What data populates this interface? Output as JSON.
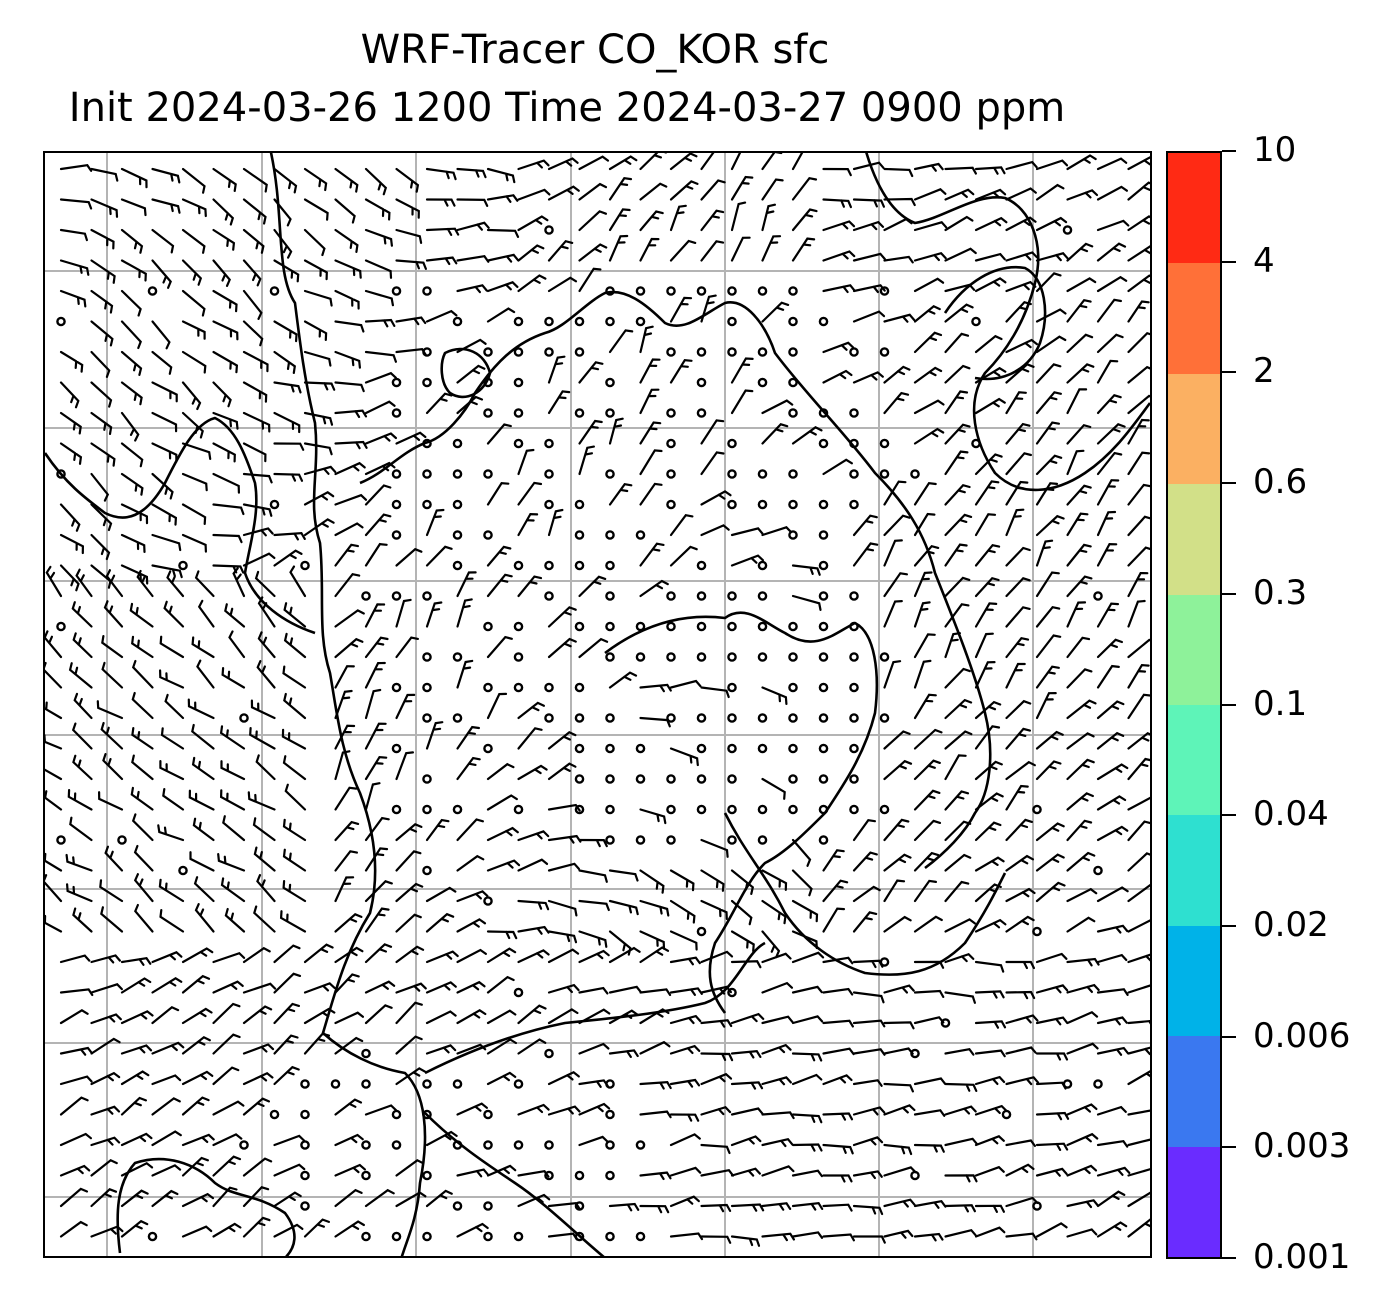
{
  "title": {
    "line1": "WRF-Tracer CO_KOR sfc",
    "line2": "Init 2024-03-26 1200 Time 2024-03-27 0900 ppm"
  },
  "colorbar": {
    "ticks": [
      "0.001",
      "0.003",
      "0.006",
      "0.02",
      "0.04",
      "0.1",
      "0.3",
      "0.6",
      "2",
      "4",
      "10"
    ],
    "colors": [
      "#6a2cff",
      "#3a78f0",
      "#00b2e8",
      "#2ee0d0",
      "#5ef4b8",
      "#8ef29a",
      "#d2e088",
      "#fbb062",
      "#ff7038",
      "#ff2a14"
    ]
  },
  "map": {
    "line_color": "#000000",
    "grid_color": "#b4b4b4",
    "gridlines_on": true,
    "coastlines": true,
    "overlay": "wind barbs",
    "calm_marker": "open circle"
  }
}
